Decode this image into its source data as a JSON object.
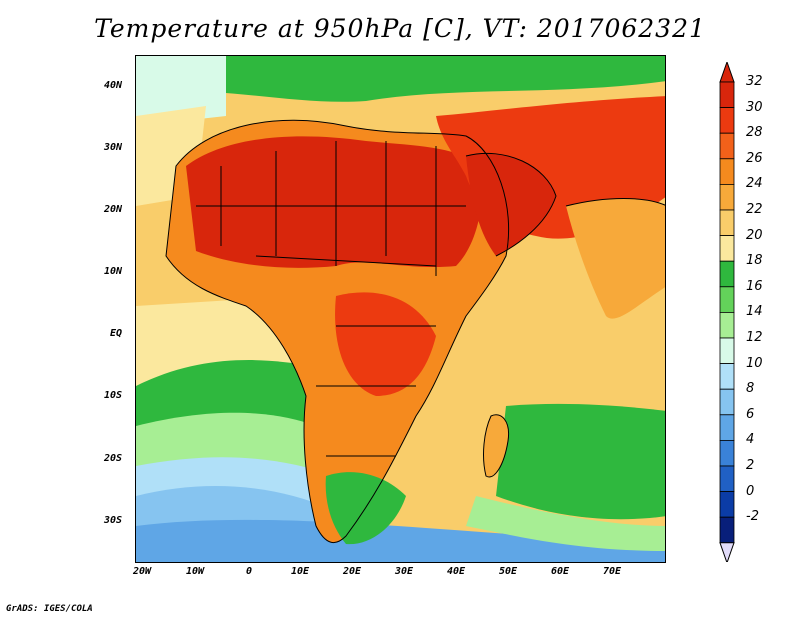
{
  "title": "Temperature at 950hPa [C], VT: 2017062321",
  "credit": "GrADS: IGES/COLA",
  "lat_labels": [
    "40N",
    "30N",
    "20N",
    "10N",
    "EQ",
    "10S",
    "20S",
    "30S"
  ],
  "lon_labels": [
    "20W",
    "10W",
    "0",
    "10E",
    "20E",
    "30E",
    "40E",
    "50E",
    "60E",
    "70E"
  ],
  "colorbar": {
    "labels": [
      "32",
      "30",
      "28",
      "26",
      "24",
      "22",
      "20",
      "18",
      "16",
      "14",
      "12",
      "10",
      "8",
      "6",
      "4",
      "2",
      "0",
      "-2"
    ],
    "colors": [
      "#d8260c",
      "#ec3a10",
      "#f2611a",
      "#f58a1e",
      "#f7a93a",
      "#f9cd6a",
      "#fbe89e",
      "#2fb83e",
      "#63d25a",
      "#a7ee94",
      "#d8fae8",
      "#b0e0f8",
      "#86c4f0",
      "#5fa6e6",
      "#3a82d8",
      "#2060c4",
      "#0b3ca6",
      "#081f7a"
    ],
    "tip_top": "#d8260c",
    "tip_bottom": "#e2dcfa"
  },
  "map_background": {
    "ocean_color": "#f9cd6a",
    "land_hot_color": "#d8260c",
    "south_cool_color": "#5fa6e6"
  }
}
